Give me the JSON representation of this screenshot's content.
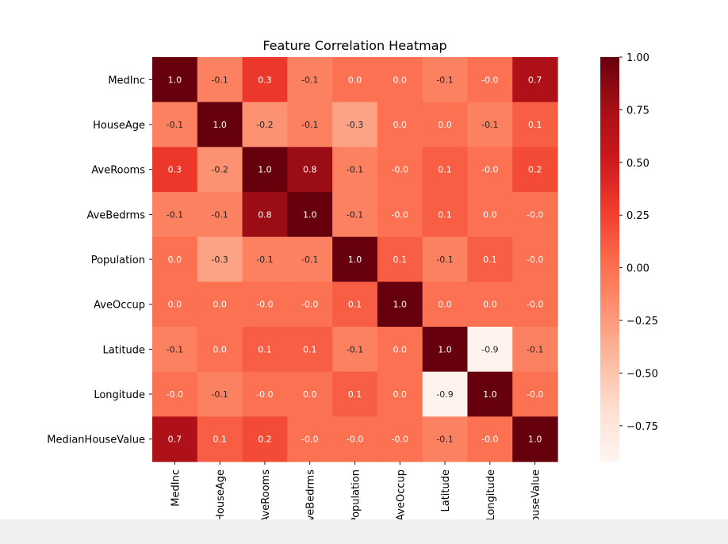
{
  "chart_data": {
    "type": "heatmap",
    "title": "Feature Correlation Heatmap",
    "row_labels": [
      "MedInc",
      "HouseAge",
      "AveRooms",
      "AveBedrms",
      "Population",
      "AveOccup",
      "Latitude",
      "Longitude",
      "MedianHouseValue"
    ],
    "col_labels": [
      "MedInc",
      "HouseAge",
      "AveRooms",
      "AveBedrms",
      "Population",
      "AveOccup",
      "Latitude",
      "Longitude",
      "MedianHouseValue"
    ],
    "values": [
      [
        1.0,
        -0.1,
        0.3,
        -0.1,
        0.0,
        0.0,
        -0.1,
        -0.0,
        0.7
      ],
      [
        -0.1,
        1.0,
        -0.2,
        -0.1,
        -0.3,
        0.0,
        0.0,
        -0.1,
        0.1
      ],
      [
        0.3,
        -0.2,
        1.0,
        0.8,
        -0.1,
        -0.0,
        0.1,
        -0.0,
        0.2
      ],
      [
        -0.1,
        -0.1,
        0.8,
        1.0,
        -0.1,
        -0.0,
        0.1,
        0.0,
        -0.0
      ],
      [
        0.0,
        -0.3,
        -0.1,
        -0.1,
        1.0,
        0.1,
        -0.1,
        0.1,
        -0.0
      ],
      [
        0.0,
        0.0,
        -0.0,
        -0.0,
        0.1,
        1.0,
        0.0,
        0.0,
        -0.0
      ],
      [
        -0.1,
        0.0,
        0.1,
        0.1,
        -0.1,
        0.0,
        1.0,
        -0.9,
        -0.1
      ],
      [
        -0.0,
        -0.1,
        -0.0,
        0.0,
        0.1,
        0.0,
        -0.9,
        1.0,
        -0.0
      ],
      [
        0.7,
        0.1,
        0.2,
        -0.0,
        -0.0,
        -0.0,
        -0.1,
        -0.0,
        1.0
      ]
    ],
    "annotation_labels": [
      [
        "1.0",
        "-0.1",
        "0.3",
        "-0.1",
        "0.0",
        "0.0",
        "-0.1",
        "-0.0",
        "0.7"
      ],
      [
        "-0.1",
        "1.0",
        "-0.2",
        "-0.1",
        "-0.3",
        "0.0",
        "0.0",
        "-0.1",
        "0.1"
      ],
      [
        "0.3",
        "-0.2",
        "1.0",
        "0.8",
        "-0.1",
        "-0.0",
        "0.1",
        "-0.0",
        "0.2"
      ],
      [
        "-0.1",
        "-0.1",
        "0.8",
        "1.0",
        "-0.1",
        "-0.0",
        "0.1",
        "0.0",
        "-0.0"
      ],
      [
        "0.0",
        "-0.3",
        "-0.1",
        "-0.1",
        "1.0",
        "0.1",
        "-0.1",
        "0.1",
        "-0.0"
      ],
      [
        "0.0",
        "0.0",
        "-0.0",
        "-0.0",
        "0.1",
        "1.0",
        "0.0",
        "0.0",
        "-0.0"
      ],
      [
        "-0.1",
        "0.0",
        "0.1",
        "0.1",
        "-0.1",
        "0.0",
        "1.0",
        "-0.9",
        "-0.1"
      ],
      [
        "-0.0",
        "-0.1",
        "-0.0",
        "0.0",
        "0.1",
        "0.0",
        "-0.9",
        "1.0",
        "-0.0"
      ],
      [
        "0.7",
        "0.1",
        "0.2",
        "-0.0",
        "-0.0",
        "-0.0",
        "-0.1",
        "-0.0",
        "1.0"
      ]
    ],
    "colormap": "Reds",
    "color_range": [
      -0.92,
      1.0
    ],
    "colorbar_ticks": [
      1.0,
      0.75,
      0.5,
      0.25,
      0.0,
      -0.25,
      -0.5,
      -0.75
    ],
    "colorbar_tick_labels": [
      "1.00",
      "0.75",
      "0.50",
      "0.25",
      "0.00",
      "−0.25",
      "−0.50",
      "−0.75"
    ],
    "grid": false,
    "legend": "colorbar-right"
  },
  "colors": {
    "cmap_stops": [
      "#fff5f0",
      "#fee0d2",
      "#fcbba1",
      "#fc9272",
      "#fb6a4a",
      "#ef3b2c",
      "#cb181d",
      "#a50f15",
      "#67000d"
    ]
  }
}
